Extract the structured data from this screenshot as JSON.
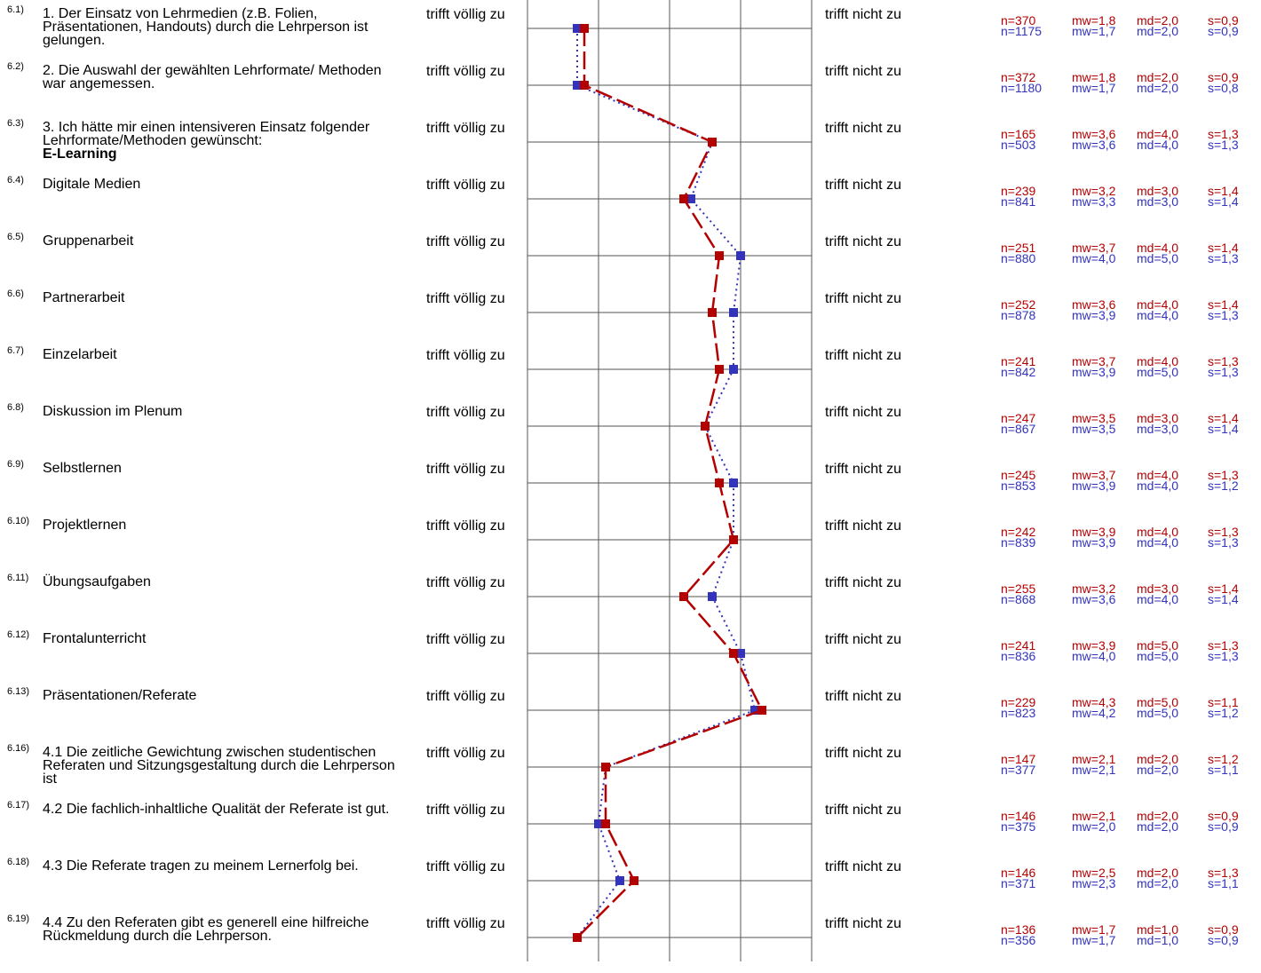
{
  "scale": {
    "left_label": "trifft völlig zu",
    "right_label": "trifft nicht zu",
    "min": 1,
    "max": 5
  },
  "colors": {
    "series1": "#b30000",
    "series2": "#3333bb",
    "grid": "#555555"
  },
  "chart_data": {
    "type": "line",
    "orientation": "horizontal-profile",
    "xlim": [
      1,
      5
    ],
    "categories": [
      "6.1)",
      "6.2)",
      "6.3)",
      "6.4)",
      "6.5)",
      "6.6)",
      "6.7)",
      "6.8)",
      "6.9)",
      "6.10)",
      "6.11)",
      "6.12)",
      "6.13)",
      "6.16)",
      "6.17)",
      "6.18)",
      "6.19)"
    ],
    "series": [
      {
        "values": [
          1.8,
          1.8,
          3.6,
          3.2,
          3.7,
          3.6,
          3.7,
          3.5,
          3.7,
          3.9,
          3.2,
          3.9,
          4.3,
          2.1,
          2.1,
          2.5,
          1.7
        ]
      },
      {
        "values": [
          1.7,
          1.7,
          3.6,
          3.3,
          4.0,
          3.9,
          3.9,
          3.5,
          3.9,
          3.9,
          3.6,
          4.0,
          4.2,
          2.1,
          2.0,
          2.3,
          1.7
        ]
      }
    ]
  },
  "items": [
    {
      "num": "6.1)",
      "text": "1. Der Einsatz von Lehrmedien (z.B. Folien, Präsentationen, Handouts) durch die Lehrperson ist gelungen.",
      "bold": "",
      "s1": {
        "n": "n=370",
        "mw": "mw=1,8",
        "md": "md=2,0",
        "s": "s=0,9"
      },
      "s2": {
        "n": "n=1175",
        "mw": "mw=1,7",
        "md": "md=2,0",
        "s": "s=0,9"
      }
    },
    {
      "num": "6.2)",
      "text": "2. Die Auswahl der gewählten Lehrformate/ Methoden war angemessen.",
      "bold": "",
      "s1": {
        "n": "n=372",
        "mw": "mw=1,8",
        "md": "md=2,0",
        "s": "s=0,9"
      },
      "s2": {
        "n": "n=1180",
        "mw": "mw=1,7",
        "md": "md=2,0",
        "s": "s=0,8"
      }
    },
    {
      "num": "6.3)",
      "text": "3. Ich hätte mir einen intensiveren Einsatz folgender Lehrformate/Methoden gewünscht:",
      "bold": "E-Learning",
      "s1": {
        "n": "n=165",
        "mw": "mw=3,6",
        "md": "md=4,0",
        "s": "s=1,3"
      },
      "s2": {
        "n": "n=503",
        "mw": "mw=3,6",
        "md": "md=4,0",
        "s": "s=1,3"
      }
    },
    {
      "num": "6.4)",
      "text": "Digitale Medien",
      "bold": "",
      "s1": {
        "n": "n=239",
        "mw": "mw=3,2",
        "md": "md=3,0",
        "s": "s=1,4"
      },
      "s2": {
        "n": "n=841",
        "mw": "mw=3,3",
        "md": "md=3,0",
        "s": "s=1,4"
      }
    },
    {
      "num": "6.5)",
      "text": "Gruppenarbeit",
      "bold": "",
      "s1": {
        "n": "n=251",
        "mw": "mw=3,7",
        "md": "md=4,0",
        "s": "s=1,4"
      },
      "s2": {
        "n": "n=880",
        "mw": "mw=4,0",
        "md": "md=5,0",
        "s": "s=1,3"
      }
    },
    {
      "num": "6.6)",
      "text": "Partnerarbeit",
      "bold": "",
      "s1": {
        "n": "n=252",
        "mw": "mw=3,6",
        "md": "md=4,0",
        "s": "s=1,4"
      },
      "s2": {
        "n": "n=878",
        "mw": "mw=3,9",
        "md": "md=4,0",
        "s": "s=1,3"
      }
    },
    {
      "num": "6.7)",
      "text": "Einzelarbeit",
      "bold": "",
      "s1": {
        "n": "n=241",
        "mw": "mw=3,7",
        "md": "md=4,0",
        "s": "s=1,3"
      },
      "s2": {
        "n": "n=842",
        "mw": "mw=3,9",
        "md": "md=5,0",
        "s": "s=1,3"
      }
    },
    {
      "num": "6.8)",
      "text": "Diskussion im Plenum",
      "bold": "",
      "s1": {
        "n": "n=247",
        "mw": "mw=3,5",
        "md": "md=3,0",
        "s": "s=1,4"
      },
      "s2": {
        "n": "n=867",
        "mw": "mw=3,5",
        "md": "md=3,0",
        "s": "s=1,4"
      }
    },
    {
      "num": "6.9)",
      "text": "Selbstlernen",
      "bold": "",
      "s1": {
        "n": "n=245",
        "mw": "mw=3,7",
        "md": "md=4,0",
        "s": "s=1,3"
      },
      "s2": {
        "n": "n=853",
        "mw": "mw=3,9",
        "md": "md=4,0",
        "s": "s=1,2"
      }
    },
    {
      "num": "6.10)",
      "text": "Projektlernen",
      "bold": "",
      "s1": {
        "n": "n=242",
        "mw": "mw=3,9",
        "md": "md=4,0",
        "s": "s=1,3"
      },
      "s2": {
        "n": "n=839",
        "mw": "mw=3,9",
        "md": "md=4,0",
        "s": "s=1,3"
      }
    },
    {
      "num": "6.11)",
      "text": "Übungsaufgaben",
      "bold": "",
      "s1": {
        "n": "n=255",
        "mw": "mw=3,2",
        "md": "md=3,0",
        "s": "s=1,4"
      },
      "s2": {
        "n": "n=868",
        "mw": "mw=3,6",
        "md": "md=4,0",
        "s": "s=1,4"
      }
    },
    {
      "num": "6.12)",
      "text": "Frontalunterricht",
      "bold": "",
      "s1": {
        "n": "n=241",
        "mw": "mw=3,9",
        "md": "md=5,0",
        "s": "s=1,3"
      },
      "s2": {
        "n": "n=836",
        "mw": "mw=4,0",
        "md": "md=5,0",
        "s": "s=1,3"
      }
    },
    {
      "num": "6.13)",
      "text": "Präsentationen/Referate",
      "bold": "",
      "s1": {
        "n": "n=229",
        "mw": "mw=4,3",
        "md": "md=5,0",
        "s": "s=1,1"
      },
      "s2": {
        "n": "n=823",
        "mw": "mw=4,2",
        "md": "md=5,0",
        "s": "s=1,2"
      }
    },
    {
      "num": "6.16)",
      "text": "4.1 Die zeitliche Gewichtung zwischen studentischen Referaten und Sitzungsgestaltung durch die Lehrperson ist",
      "bold": "",
      "s1": {
        "n": "n=147",
        "mw": "mw=2,1",
        "md": "md=2,0",
        "s": "s=1,2"
      },
      "s2": {
        "n": "n=377",
        "mw": "mw=2,1",
        "md": "md=2,0",
        "s": "s=1,1"
      }
    },
    {
      "num": "6.17)",
      "text": "4.2 Die fachlich-inhaltliche Qualität der Referate ist gut.",
      "bold": "",
      "s1": {
        "n": "n=146",
        "mw": "mw=2,1",
        "md": "md=2,0",
        "s": "s=0,9"
      },
      "s2": {
        "n": "n=375",
        "mw": "mw=2,0",
        "md": "md=2,0",
        "s": "s=0,9"
      }
    },
    {
      "num": "6.18)",
      "text": "4.3 Die Referate tragen zu meinem Lernerfolg bei.",
      "bold": "",
      "s1": {
        "n": "n=146",
        "mw": "mw=2,5",
        "md": "md=2,0",
        "s": "s=1,3"
      },
      "s2": {
        "n": "n=371",
        "mw": "mw=2,3",
        "md": "md=2,0",
        "s": "s=1,1"
      }
    },
    {
      "num": "6.19)",
      "text": "4.4 Zu den Referaten gibt es generell eine hilfreiche  Rückmeldung durch die Lehrperson.",
      "bold": "",
      "s1": {
        "n": "n=136",
        "mw": "mw=1,7",
        "md": "md=1,0",
        "s": "s=0,9"
      },
      "s2": {
        "n": "n=356",
        "mw": "mw=1,7",
        "md": "md=1,0",
        "s": "s=0,9"
      }
    }
  ]
}
